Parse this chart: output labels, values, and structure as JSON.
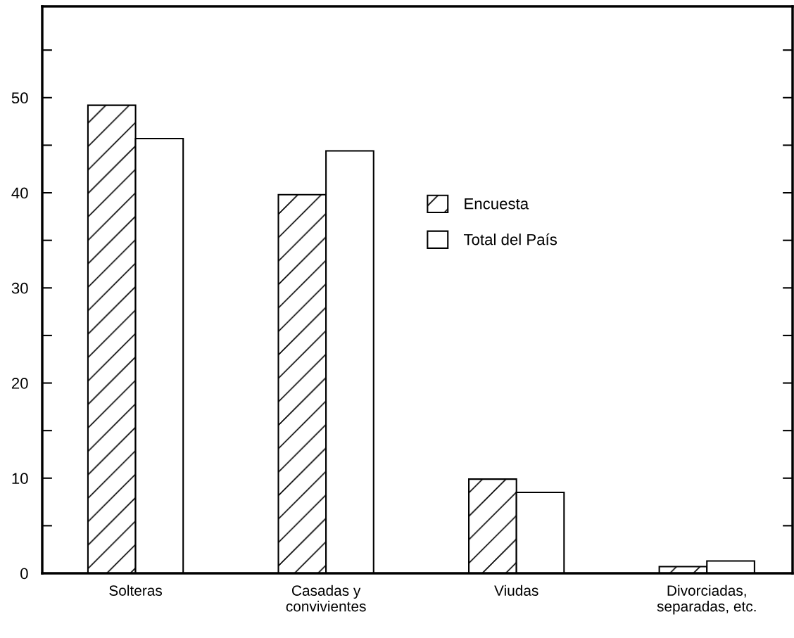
{
  "chart_data": {
    "type": "bar",
    "categories": [
      "Solteras",
      "Casadas y\nconvivientes",
      "Viudas",
      "Divorciadas,\nseparadas, etc."
    ],
    "series": [
      {
        "name": "Encuesta",
        "color": "#000000",
        "values": [
          49.2,
          39.8,
          9.9,
          0.7
        ]
      },
      {
        "name": "Total del País",
        "color": "#ffffff",
        "values": [
          45.7,
          44.4,
          8.5,
          1.3
        ]
      }
    ],
    "ylim": [
      0,
      59.6
    ],
    "yticks": [
      0,
      {
        "value": 5,
        "label": null
      },
      10,
      {
        "value": 15,
        "label": null
      },
      20,
      {
        "value": 25,
        "label": null
      },
      30,
      {
        "value": 35,
        "label": null
      },
      40,
      {
        "value": 45,
        "label": null
      },
      50,
      {
        "value": 55,
        "label": null
      }
    ],
    "legend": "center",
    "grid": false
  }
}
